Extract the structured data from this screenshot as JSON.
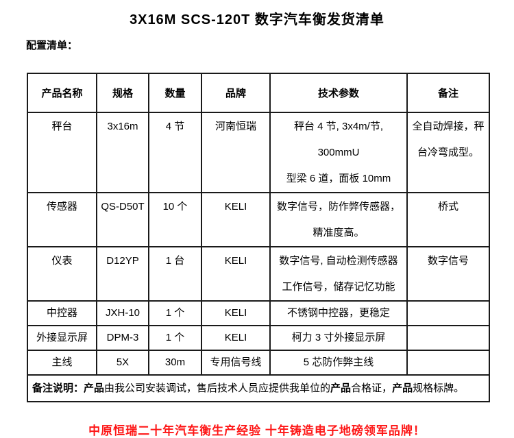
{
  "page": {
    "title": "3X16M SCS-120T 数字汽车衡发货清单",
    "config_label": "配置清单：",
    "footer": "中原恒瑞二十年汽车衡生产经验 十年铸造电子地磅领军品牌！",
    "colors": {
      "text": "#000000",
      "accent_red": "#fe1616",
      "border": "#1a1a1a"
    }
  },
  "table": {
    "headers": [
      "产品名称",
      "规格",
      "数量",
      "品牌",
      "技术参数",
      "备注"
    ],
    "rows": [
      {
        "name": "秤台",
        "spec": "3x16m",
        "qty": "4 节",
        "brand": "河南恒瑞",
        "params": "秤台 4 节, 3x4m/节, 300mmU\n型梁 6 道，面板 10mm",
        "remark": "全自动焊接，秤\n台冷弯成型。"
      },
      {
        "name": "传感器",
        "spec": "QS-D50T",
        "qty": "10 个",
        "brand": "KELI",
        "params": "数字信号，防作弊传感器，\n精准度高。",
        "remark": "桥式"
      },
      {
        "name": "仪表",
        "spec": "D12YP",
        "qty": "1 台",
        "brand": "KELI",
        "params": "数字信号, 自动检测传感器\n工作信号，储存记忆功能",
        "remark": "数字信号"
      },
      {
        "name": "中控器",
        "spec": "JXH-10",
        "qty": "1 个",
        "brand": "KELI",
        "params": "不锈钢中控器，更稳定",
        "remark": ""
      },
      {
        "name": "外接显示屏",
        "spec": "DPM-3",
        "qty": "1 个",
        "brand": "KELI",
        "params": "柯力 3 寸外接显示屏",
        "remark": ""
      },
      {
        "name": "主线",
        "spec": "5X",
        "qty": "30m",
        "brand": "专用信号线",
        "params": "5 芯防作弊主线",
        "remark": ""
      }
    ],
    "note_segments": [
      {
        "text": "备注说明：",
        "bold": true
      },
      {
        "text": "产品",
        "bold": true
      },
      {
        "text": "由我公司安装调试，售后技术人员应提供我单位的",
        "bold": false
      },
      {
        "text": "产品",
        "bold": true
      },
      {
        "text": "合格证，",
        "bold": false
      },
      {
        "text": "产品",
        "bold": true
      },
      {
        "text": "规格标牌。",
        "bold": false
      }
    ]
  }
}
